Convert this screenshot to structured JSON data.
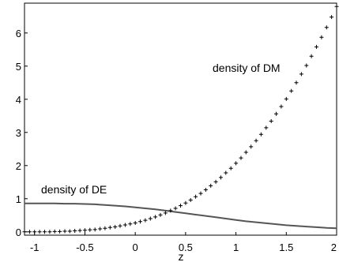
{
  "chart_data": {
    "type": "line",
    "title": "",
    "xlabel": "z",
    "ylabel": "",
    "xlim": [
      -1.1,
      2.0
    ],
    "ylim": [
      -0.1,
      6.9
    ],
    "grid": false,
    "legend": "none",
    "xticks": [
      "-1",
      "-0.5",
      "0",
      "0.5",
      "1",
      "1.5",
      "2"
    ],
    "yticks": [
      "0",
      "1",
      "2",
      "3",
      "4",
      "5",
      "6"
    ],
    "annotations": [
      "density of DM",
      "density of DE"
    ],
    "series": [
      {
        "label": "density of DE",
        "style": "solid-line",
        "color": "#555555",
        "x": [
          -1.1,
          -1.0,
          -0.9,
          -0.8,
          -0.7,
          -0.6,
          -0.5,
          -0.4,
          -0.3,
          -0.2,
          -0.1,
          0.0,
          0.1,
          0.2,
          0.3,
          0.4,
          0.5,
          0.6,
          0.7,
          0.8,
          0.9,
          1.0,
          1.1,
          1.2,
          1.3,
          1.4,
          1.5,
          1.6,
          1.7,
          1.8,
          1.9,
          2.0
        ],
        "y": [
          0.86,
          0.86,
          0.86,
          0.86,
          0.85,
          0.85,
          0.84,
          0.83,
          0.81,
          0.79,
          0.77,
          0.74,
          0.71,
          0.68,
          0.64,
          0.6,
          0.56,
          0.52,
          0.48,
          0.44,
          0.4,
          0.36,
          0.32,
          0.29,
          0.26,
          0.23,
          0.2,
          0.18,
          0.16,
          0.14,
          0.12,
          0.11
        ]
      },
      {
        "label": "density of DM",
        "style": "plus-markers",
        "color": "#000000",
        "x": [
          -1.1,
          -1.05,
          -1.0,
          -0.95,
          -0.9,
          -0.85,
          -0.8,
          -0.75,
          -0.7,
          -0.65,
          -0.6,
          -0.55,
          -0.5,
          -0.45,
          -0.4,
          -0.35,
          -0.3,
          -0.25,
          -0.2,
          -0.15,
          -0.1,
          -0.05,
          0.0,
          0.05,
          0.1,
          0.15,
          0.2,
          0.25,
          0.3,
          0.35,
          0.4,
          0.45,
          0.5,
          0.55,
          0.6,
          0.65,
          0.7,
          0.75,
          0.8,
          0.85,
          0.9,
          0.95,
          1.0,
          1.05,
          1.1,
          1.15,
          1.2,
          1.25,
          1.3,
          1.35,
          1.4,
          1.45,
          1.5,
          1.55,
          1.6,
          1.65,
          1.7,
          1.75,
          1.8,
          1.85,
          1.9,
          1.95,
          2.0
        ],
        "y": [
          0.0,
          0.0,
          0.0,
          0.0,
          0.0,
          0.0,
          0.01,
          0.01,
          0.02,
          0.02,
          0.03,
          0.04,
          0.05,
          0.06,
          0.07,
          0.09,
          0.11,
          0.13,
          0.15,
          0.18,
          0.21,
          0.24,
          0.27,
          0.31,
          0.35,
          0.4,
          0.45,
          0.51,
          0.57,
          0.64,
          0.71,
          0.79,
          0.87,
          0.96,
          1.06,
          1.16,
          1.27,
          1.39,
          1.51,
          1.64,
          1.78,
          1.92,
          2.07,
          2.23,
          2.4,
          2.57,
          2.75,
          2.94,
          3.14,
          3.34,
          3.56,
          3.78,
          4.01,
          4.25,
          4.5,
          4.76,
          5.02,
          5.3,
          5.58,
          5.87,
          6.17,
          6.48,
          6.8
        ]
      }
    ]
  }
}
